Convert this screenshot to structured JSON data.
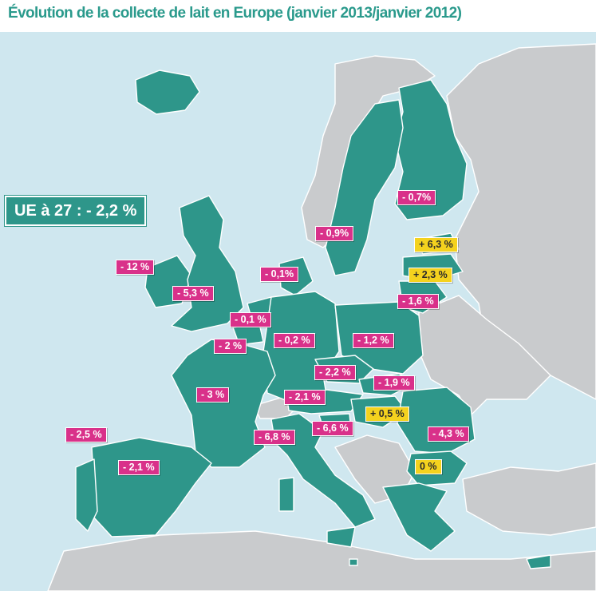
{
  "title": "Évolution de la collecte de lait en Europe (janvier 2013/janvier 2012)",
  "eu_total": "UE à 27 : - 2,2 %",
  "colors": {
    "eu_fill": "#2e968a",
    "non_eu_fill": "#c9cbcd",
    "sea": "#cfe7ef",
    "negative_label": "#d9318a",
    "positive_label": "#f4d21e",
    "title": "#2a9a8c"
  },
  "values": [
    {
      "id": "finland",
      "label": "- 0,7%",
      "kind": "neg"
    },
    {
      "id": "sweden",
      "label": "- 0,9%",
      "kind": "neg"
    },
    {
      "id": "estonia",
      "label": "+ 6,3 %",
      "kind": "pos"
    },
    {
      "id": "latvia",
      "label": "+ 2,3 %",
      "kind": "pos"
    },
    {
      "id": "lithuania",
      "label": "- 1,6 %",
      "kind": "neg"
    },
    {
      "id": "denmark",
      "label": "- 0,1%",
      "kind": "neg"
    },
    {
      "id": "ireland",
      "label": "- 12 %",
      "kind": "neg"
    },
    {
      "id": "united-kingdom",
      "label": "- 5,3 %",
      "kind": "neg"
    },
    {
      "id": "netherlands",
      "label": "- 0,1 %",
      "kind": "neg"
    },
    {
      "id": "belgium",
      "label": "- 2 %",
      "kind": "neg"
    },
    {
      "id": "germany",
      "label": "- 0,2 %",
      "kind": "neg"
    },
    {
      "id": "poland",
      "label": "- 1,2 %",
      "kind": "neg"
    },
    {
      "id": "czech-republic",
      "label": "- 2,2 %",
      "kind": "neg"
    },
    {
      "id": "slovakia",
      "label": "- 1,9 %",
      "kind": "neg"
    },
    {
      "id": "austria",
      "label": "- 2,1 %",
      "kind": "neg"
    },
    {
      "id": "france",
      "label": "- 3 %",
      "kind": "neg"
    },
    {
      "id": "hungary",
      "label": "+ 0,5 %",
      "kind": "pos"
    },
    {
      "id": "slovenia",
      "label": "- 6,6 %",
      "kind": "neg"
    },
    {
      "id": "italy",
      "label": "- 6,8 %",
      "kind": "neg"
    },
    {
      "id": "romania",
      "label": "- 4,3 %",
      "kind": "neg"
    },
    {
      "id": "portugal",
      "label": "- 2,5 %",
      "kind": "neg"
    },
    {
      "id": "spain",
      "label": "- 2,1 %",
      "kind": "neg"
    },
    {
      "id": "bulgaria",
      "label": "0 %",
      "kind": "pos"
    }
  ]
}
